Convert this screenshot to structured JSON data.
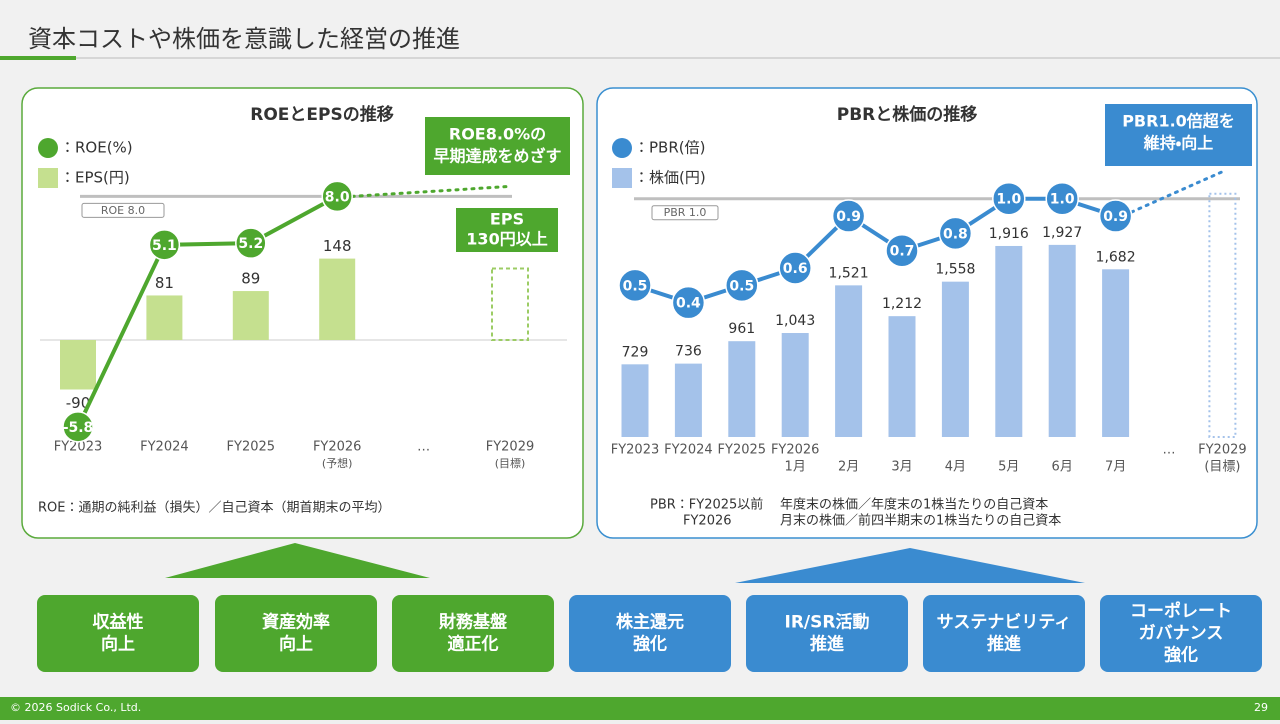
{
  "title": "資本コストや株価を意識した経営の推進",
  "chart_data": [
    {
      "type": "combo",
      "title": "ROEとEPSの推移",
      "categories": [
        "FY2023",
        "FY2024",
        "FY2025",
        "FY2026",
        "…",
        "FY2029"
      ],
      "category_notes": [
        null,
        null,
        null,
        "(予想)",
        null,
        "(目標)"
      ],
      "series": [
        {
          "name": "：ROE(%)",
          "type": "line",
          "color": "#4ea72e",
          "values": [
            -5.8,
            5.1,
            5.2,
            8,
            null,
            null
          ],
          "value_labels": [
            "-5.8",
            "5.1",
            "5.2",
            "8.0",
            null,
            null
          ]
        },
        {
          "name": "：EPS(円)",
          "type": "bar",
          "color": "#c5e08f",
          "values": [
            -90,
            81,
            89,
            148,
            null,
            null
          ]
        }
      ],
      "reference_line": {
        "value": 8,
        "label": "ROE 8.0"
      },
      "target": {
        "value": 130,
        "label": [
          "EPS",
          "130円以上"
        ]
      },
      "annotation": [
        "ROE8.0%の",
        "早期達成をめざす"
      ],
      "footnote": [
        "ROE：通期の純利益（損失）／自己資本（期首期末の平均）"
      ]
    },
    {
      "type": "combo",
      "title": "PBRと株価の推移",
      "categories": [
        "FY2023",
        "FY2024",
        "FY2025",
        "FY2026",
        null,
        null,
        null,
        null,
        null,
        null,
        "…",
        "FY2029"
      ],
      "category_notes": [
        null,
        null,
        null,
        "1月",
        "2月",
        "3月",
        "4月",
        "5月",
        "6月",
        "7月",
        null,
        "(目標)"
      ],
      "series": [
        {
          "name": "：PBR(倍)",
          "type": "line",
          "color": "#3a8bd0",
          "values": [
            0.5,
            0.4,
            0.5,
            0.6,
            0.9,
            0.7,
            0.8,
            1,
            1,
            0.9,
            null,
            null
          ],
          "value_labels": [
            "0.5",
            "0.4",
            "0.5",
            "0.6",
            "0.9",
            "0.7",
            "0.8",
            "1.0",
            "1.0",
            "0.9",
            null,
            null
          ]
        },
        {
          "name": "：株価(円)",
          "type": "bar",
          "color": "#a4c2ea",
          "values": [
            729,
            736,
            961,
            1043,
            1521,
            1212,
            1558,
            1916,
            1927,
            1682,
            null,
            null
          ],
          "value_labels": [
            "729",
            "736",
            "961",
            "1,043",
            "1,521",
            "1,212",
            "1,558",
            "1,916",
            "1,927",
            "1,682",
            null,
            null
          ]
        }
      ],
      "reference_line": {
        "value": 1,
        "label": "PBR 1.0"
      },
      "annotation": [
        "PBR1.0倍超を",
        "維持・向上"
      ],
      "footnote": [
        "PBR：FY2025以前",
        "年度末の株価／年度末の1株当たりの自己資本",
        "FY2026",
        "月末の株価／前四半期末の1株当たりの自己資本"
      ]
    }
  ],
  "pillars": [
    {
      "label": [
        "収益性",
        "向上"
      ],
      "color": "#4ea72e"
    },
    {
      "label": [
        "資産効率",
        "向上"
      ],
      "color": "#4ea72e"
    },
    {
      "label": [
        "財務基盤",
        "適正化"
      ],
      "color": "#4ea72e"
    },
    {
      "label": [
        "株主還元",
        "強化"
      ],
      "color": "#3a8bd0"
    },
    {
      "label": [
        "IR/SR活動",
        "推進"
      ],
      "color": "#3a8bd0"
    },
    {
      "label": [
        "サステナビリティ",
        "推進"
      ],
      "color": "#3a8bd0"
    },
    {
      "label": [
        "コーポレート",
        "ガバナンス",
        "強化"
      ],
      "color": "#3a8bd0"
    }
  ],
  "footer": {
    "copyright": "© 2026 Sodick Co., Ltd.",
    "page": 29
  }
}
